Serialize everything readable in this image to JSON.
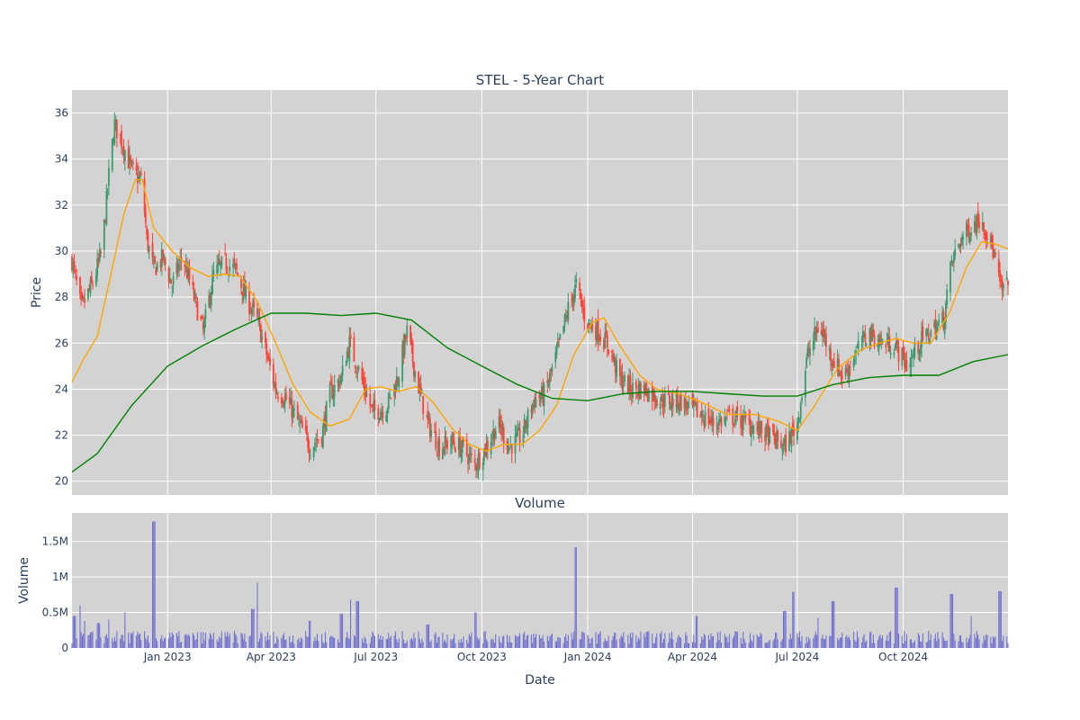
{
  "chart_data": [
    {
      "type": "candlestick",
      "title": "STEL - 5-Year Chart",
      "ylabel": "Price",
      "ylim": [
        19.4,
        37.0
      ],
      "yticks": [
        20,
        22,
        24,
        26,
        28,
        30,
        32,
        34,
        36
      ],
      "xlim": [
        "2022-10-10",
        "2024-12-31"
      ],
      "grid": true,
      "legend": "none",
      "colors": {
        "increasing": "#3d9970",
        "decreasing": "#ff4136",
        "ma_short": "#ffa500",
        "ma_long": "#008000",
        "background": "#d3d3d3"
      },
      "close_path": [
        [
          "2022-10-10",
          29.6
        ],
        [
          "2022-10-18",
          27.5
        ],
        [
          "2022-10-28",
          28.6
        ],
        [
          "2022-11-05",
          30.0
        ],
        [
          "2022-11-12",
          33.8
        ],
        [
          "2022-11-16",
          35.5
        ],
        [
          "2022-11-22",
          34.8
        ],
        [
          "2022-12-01",
          33.5
        ],
        [
          "2022-12-10",
          33.0
        ],
        [
          "2022-12-14",
          30.5
        ],
        [
          "2022-12-20",
          29.2
        ],
        [
          "2022-12-28",
          29.7
        ],
        [
          "2023-01-05",
          28.5
        ],
        [
          "2023-01-14",
          29.8
        ],
        [
          "2023-01-24",
          28.0
        ],
        [
          "2023-02-01",
          26.5
        ],
        [
          "2023-02-10",
          29.0
        ],
        [
          "2023-02-20",
          29.5
        ],
        [
          "2023-03-01",
          29.2
        ],
        [
          "2023-03-10",
          28.0
        ],
        [
          "2023-03-20",
          27.0
        ],
        [
          "2023-03-28",
          25.5
        ],
        [
          "2023-04-05",
          24.0
        ],
        [
          "2023-04-15",
          23.5
        ],
        [
          "2023-04-25",
          22.5
        ],
        [
          "2023-05-05",
          21.5
        ],
        [
          "2023-05-15",
          22.0
        ],
        [
          "2023-05-22",
          23.8
        ],
        [
          "2023-06-01",
          24.5
        ],
        [
          "2023-06-08",
          26.0
        ],
        [
          "2023-06-18",
          24.5
        ],
        [
          "2023-06-28",
          23.0
        ],
        [
          "2023-07-10",
          23.2
        ],
        [
          "2023-07-20",
          24.5
        ],
        [
          "2023-07-28",
          26.5
        ],
        [
          "2023-08-05",
          24.5
        ],
        [
          "2023-08-15",
          22.5
        ],
        [
          "2023-08-25",
          21.5
        ],
        [
          "2023-09-05",
          21.7
        ],
        [
          "2023-09-15",
          21.4
        ],
        [
          "2023-09-25",
          20.7
        ],
        [
          "2023-10-05",
          21.5
        ],
        [
          "2023-10-15",
          22.5
        ],
        [
          "2023-10-25",
          21.5
        ],
        [
          "2023-11-05",
          22.0
        ],
        [
          "2023-11-15",
          23.5
        ],
        [
          "2023-11-25",
          23.8
        ],
        [
          "2023-12-05",
          25.5
        ],
        [
          "2023-12-15",
          27.5
        ],
        [
          "2023-12-22",
          28.5
        ],
        [
          "2023-12-30",
          27.0
        ],
        [
          "2024-01-10",
          26.5
        ],
        [
          "2024-01-20",
          25.8
        ],
        [
          "2024-01-28",
          24.5
        ],
        [
          "2024-02-08",
          24.0
        ],
        [
          "2024-02-20",
          24.0
        ],
        [
          "2024-03-05",
          23.5
        ],
        [
          "2024-03-20",
          23.5
        ],
        [
          "2024-04-05",
          23.0
        ],
        [
          "2024-04-20",
          22.5
        ],
        [
          "2024-05-05",
          22.8
        ],
        [
          "2024-05-20",
          22.5
        ],
        [
          "2024-06-05",
          22.0
        ],
        [
          "2024-06-20",
          21.5
        ],
        [
          "2024-07-01",
          22.5
        ],
        [
          "2024-07-10",
          25.5
        ],
        [
          "2024-07-20",
          26.8
        ],
        [
          "2024-07-30",
          25.5
        ],
        [
          "2024-08-10",
          24.5
        ],
        [
          "2024-08-20",
          25.5
        ],
        [
          "2024-09-01",
          26.5
        ],
        [
          "2024-09-12",
          26.0
        ],
        [
          "2024-09-22",
          26.0
        ],
        [
          "2024-10-05",
          25.0
        ],
        [
          "2024-10-15",
          26.0
        ],
        [
          "2024-10-25",
          26.5
        ],
        [
          "2024-11-05",
          27.0
        ],
        [
          "2024-11-12",
          29.5
        ],
        [
          "2024-11-20",
          30.5
        ],
        [
          "2024-11-28",
          31.0
        ],
        [
          "2024-12-08",
          31.5
        ],
        [
          "2024-12-18",
          30.0
        ],
        [
          "2024-12-25",
          28.3
        ],
        [
          "2024-12-31",
          28.5
        ]
      ],
      "series": [
        {
          "type": "line",
          "values": [
            [
              "2022-10-10",
              24.3
            ],
            [
              "2022-10-20",
              25.3
            ],
            [
              "2022-11-01",
              26.3
            ],
            [
              "2022-11-12",
              28.8
            ],
            [
              "2022-11-24",
              31.6
            ],
            [
              "2022-12-04",
              33.1
            ],
            [
              "2022-12-10",
              33.1
            ],
            [
              "2022-12-20",
              31.0
            ],
            [
              "2023-01-05",
              30.0
            ],
            [
              "2023-01-20",
              29.3
            ],
            [
              "2023-02-05",
              28.9
            ],
            [
              "2023-02-20",
              29.0
            ],
            [
              "2023-03-05",
              28.9
            ],
            [
              "2023-03-20",
              27.8
            ],
            [
              "2023-04-05",
              26.0
            ],
            [
              "2023-04-20",
              24.2
            ],
            [
              "2023-05-05",
              23.0
            ],
            [
              "2023-05-22",
              22.4
            ],
            [
              "2023-06-08",
              22.7
            ],
            [
              "2023-06-22",
              24.0
            ],
            [
              "2023-07-05",
              24.1
            ],
            [
              "2023-07-20",
              23.9
            ],
            [
              "2023-08-05",
              24.1
            ],
            [
              "2023-08-20",
              23.4
            ],
            [
              "2023-09-05",
              22.3
            ],
            [
              "2023-09-20",
              21.6
            ],
            [
              "2023-10-05",
              21.3
            ],
            [
              "2023-10-20",
              21.6
            ],
            [
              "2023-11-05",
              21.6
            ],
            [
              "2023-11-20",
              22.2
            ],
            [
              "2023-12-05",
              23.3
            ],
            [
              "2023-12-20",
              25.5
            ],
            [
              "2024-01-05",
              26.9
            ],
            [
              "2024-01-15",
              27.1
            ],
            [
              "2024-01-30",
              25.8
            ],
            [
              "2024-02-15",
              24.6
            ],
            [
              "2024-03-01",
              24.0
            ],
            [
              "2024-03-20",
              23.8
            ],
            [
              "2024-04-10",
              23.4
            ],
            [
              "2024-05-01",
              22.9
            ],
            [
              "2024-05-25",
              22.9
            ],
            [
              "2024-06-15",
              22.6
            ],
            [
              "2024-07-01",
              22.2
            ],
            [
              "2024-07-15",
              23.2
            ],
            [
              "2024-08-05",
              24.9
            ],
            [
              "2024-08-25",
              25.7
            ],
            [
              "2024-09-10",
              26.0
            ],
            [
              "2024-09-25",
              26.2
            ],
            [
              "2024-10-10",
              26.0
            ],
            [
              "2024-10-25",
              26.0
            ],
            [
              "2024-11-10",
              27.3
            ],
            [
              "2024-11-25",
              29.3
            ],
            [
              "2024-12-08",
              30.4
            ],
            [
              "2024-12-20",
              30.3
            ],
            [
              "2024-12-31",
              30.1
            ]
          ]
        },
        {
          "type": "line",
          "values": [
            [
              "2022-10-10",
              20.4
            ],
            [
              "2022-11-01",
              21.2
            ],
            [
              "2022-12-01",
              23.3
            ],
            [
              "2023-01-01",
              25.0
            ],
            [
              "2023-02-01",
              25.9
            ],
            [
              "2023-03-01",
              26.6
            ],
            [
              "2023-04-01",
              27.3
            ],
            [
              "2023-05-01",
              27.3
            ],
            [
              "2023-06-01",
              27.2
            ],
            [
              "2023-07-01",
              27.3
            ],
            [
              "2023-08-01",
              27.0
            ],
            [
              "2023-09-01",
              25.8
            ],
            [
              "2023-10-01",
              25.0
            ],
            [
              "2023-11-01",
              24.2
            ],
            [
              "2023-12-01",
              23.6
            ],
            [
              "2024-01-01",
              23.5
            ],
            [
              "2024-02-01",
              23.8
            ],
            [
              "2024-03-01",
              23.9
            ],
            [
              "2024-04-01",
              23.9
            ],
            [
              "2024-05-01",
              23.8
            ],
            [
              "2024-06-01",
              23.7
            ],
            [
              "2024-07-01",
              23.7
            ],
            [
              "2024-08-01",
              24.2
            ],
            [
              "2024-09-01",
              24.5
            ],
            [
              "2024-10-01",
              24.6
            ],
            [
              "2024-11-01",
              24.6
            ],
            [
              "2024-12-01",
              25.2
            ],
            [
              "2024-12-31",
              25.5
            ]
          ]
        }
      ]
    },
    {
      "type": "bar",
      "title": "Volume",
      "xlabel": "Date",
      "ylabel": "Volume",
      "ylim": [
        0,
        1900000
      ],
      "yticks": [
        0,
        500000,
        1000000,
        1500000
      ],
      "ytick_labels": [
        "0",
        "0.5M",
        "1M",
        "1.5M"
      ],
      "xticks": [
        "2023-01-01",
        "2023-04-01",
        "2023-07-01",
        "2023-10-01",
        "2024-01-01",
        "2024-04-01",
        "2024-07-01",
        "2024-10-01"
      ],
      "xtick_labels": [
        "Jan 2023",
        "Apr 2023",
        "Jul 2023",
        "Oct 2023",
        "Jan 2024",
        "Apr 2024",
        "Jul 2024",
        "Oct 2024"
      ],
      "color": "#6a6ad0",
      "spikes": [
        [
          "2022-10-12",
          450000
        ],
        [
          "2022-10-16",
          600000
        ],
        [
          "2022-10-22",
          380000
        ],
        [
          "2022-11-02",
          350000
        ],
        [
          "2022-11-12",
          400000
        ],
        [
          "2022-11-26",
          500000
        ],
        [
          "2022-12-20",
          1780000
        ],
        [
          "2023-03-16",
          550000
        ],
        [
          "2023-03-19",
          920000
        ],
        [
          "2023-05-05",
          380000
        ],
        [
          "2023-06-01",
          480000
        ],
        [
          "2023-06-10",
          680000
        ],
        [
          "2023-06-15",
          660000
        ],
        [
          "2023-08-15",
          330000
        ],
        [
          "2023-09-25",
          500000
        ],
        [
          "2023-12-22",
          1420000
        ],
        [
          "2024-04-05",
          450000
        ],
        [
          "2024-06-20",
          520000
        ],
        [
          "2024-06-28",
          790000
        ],
        [
          "2024-07-20",
          420000
        ],
        [
          "2024-08-01",
          660000
        ],
        [
          "2024-09-25",
          850000
        ],
        [
          "2024-11-12",
          760000
        ],
        [
          "2024-11-30",
          450000
        ],
        [
          "2024-12-24",
          800000
        ]
      ]
    }
  ]
}
